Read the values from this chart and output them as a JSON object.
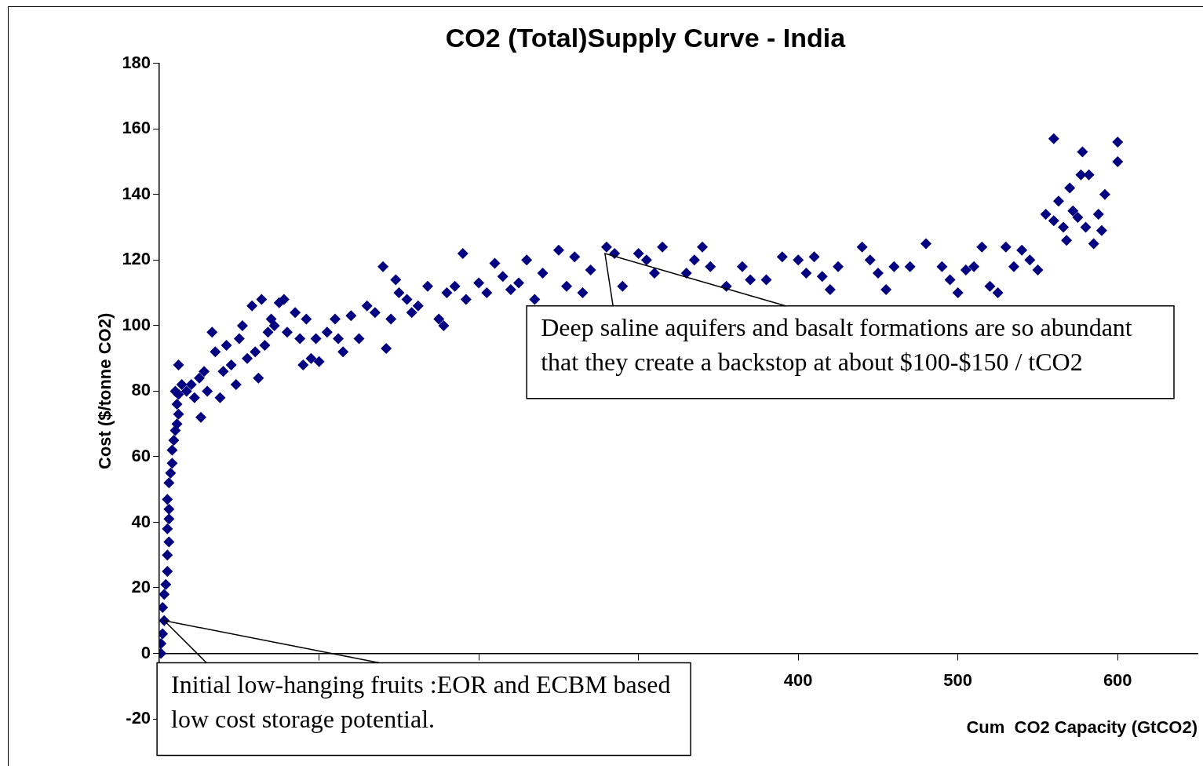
{
  "chart_data": {
    "type": "scatter",
    "title": "CO2 (Total)Supply Curve - India",
    "xlabel": "Cum  CO2 Capacity (GtCO2)",
    "ylabel": "Cost ($/tonne CO2)",
    "marker": "diamond",
    "grid": false,
    "legend": false,
    "xlim": [
      0,
      650
    ],
    "xticks": [
      {
        "value": 100,
        "label": null
      },
      {
        "value": 200,
        "label": null
      },
      {
        "value": 300,
        "label": null
      },
      400,
      500,
      600
    ],
    "ylim": [
      -20,
      180
    ],
    "yticks": [
      -20,
      0,
      20,
      40,
      60,
      80,
      100,
      120,
      140,
      160,
      180
    ],
    "annotations": [
      {
        "text": "Initial low-hanging fruits :EOR and ECBM based low cost storage potential.",
        "x": 3,
        "y": 10
      },
      {
        "text": "Deep saline aquifers and basalt formations are so abundant that they create a backstop at about $100-$150 / tCO2",
        "x": 279,
        "y": 122
      }
    ],
    "series": [
      {
        "color": "#000080",
        "x": [
          1,
          1,
          2,
          3,
          2,
          3,
          4,
          5,
          5,
          6,
          5,
          6,
          6,
          5,
          6,
          7,
          8,
          8,
          9,
          10,
          11,
          12,
          11,
          12,
          14,
          12,
          10,
          17,
          20,
          22,
          25,
          26,
          28,
          30,
          33,
          35,
          38,
          40,
          42,
          45,
          48,
          50,
          52,
          55,
          58,
          60,
          62,
          64,
          66,
          68,
          70,
          72,
          75,
          78,
          80,
          85,
          88,
          90,
          92,
          95,
          98,
          100,
          105,
          110,
          112,
          115,
          120,
          125,
          130,
          135,
          140,
          142,
          145,
          148,
          150,
          155,
          158,
          162,
          168,
          175,
          178,
          180,
          185,
          190,
          192,
          200,
          205,
          210,
          215,
          220,
          225,
          230,
          235,
          240,
          250,
          255,
          260,
          265,
          270,
          280,
          285,
          290,
          300,
          305,
          310,
          315,
          330,
          335,
          340,
          345,
          355,
          365,
          370,
          380,
          390,
          400,
          405,
          410,
          415,
          420,
          425,
          440,
          445,
          450,
          455,
          460,
          470,
          480,
          490,
          495,
          500,
          505,
          510,
          515,
          520,
          525,
          530,
          535,
          540,
          545,
          550,
          555,
          560,
          560,
          563,
          566,
          568,
          570,
          572,
          575,
          577,
          578,
          580,
          582,
          585,
          588,
          590,
          592,
          600,
          600
        ],
        "values": [
          0,
          3,
          6,
          10,
          14,
          18,
          21,
          25,
          30,
          34,
          38,
          41,
          44,
          47,
          52,
          55,
          58,
          62,
          65,
          68,
          70,
          73,
          76,
          79,
          82,
          88,
          80,
          80,
          82,
          78,
          84,
          72,
          86,
          80,
          98,
          92,
          78,
          86,
          94,
          88,
          82,
          96,
          100,
          90,
          106,
          92,
          84,
          108,
          94,
          98,
          102,
          100,
          107,
          108,
          98,
          104,
          96,
          88,
          102,
          90,
          96,
          89,
          98,
          102,
          96,
          92,
          103,
          96,
          106,
          104,
          118,
          93,
          102,
          114,
          110,
          108,
          104,
          106,
          112,
          102,
          100,
          110,
          112,
          122,
          108,
          113,
          110,
          119,
          115,
          111,
          113,
          120,
          108,
          116,
          123,
          112,
          121,
          110,
          117,
          124,
          122,
          112,
          122,
          120,
          116,
          124,
          116,
          120,
          124,
          118,
          112,
          118,
          114,
          114,
          121,
          120,
          116,
          121,
          115,
          111,
          118,
          124,
          120,
          116,
          111,
          118,
          118,
          125,
          118,
          114,
          110,
          117,
          118,
          124,
          112,
          110,
          124,
          118,
          123,
          120,
          117,
          134,
          132,
          157,
          138,
          130,
          126,
          142,
          135,
          133,
          146,
          153,
          130,
          146,
          125,
          134,
          129,
          140,
          156,
          150
        ]
      }
    ]
  }
}
